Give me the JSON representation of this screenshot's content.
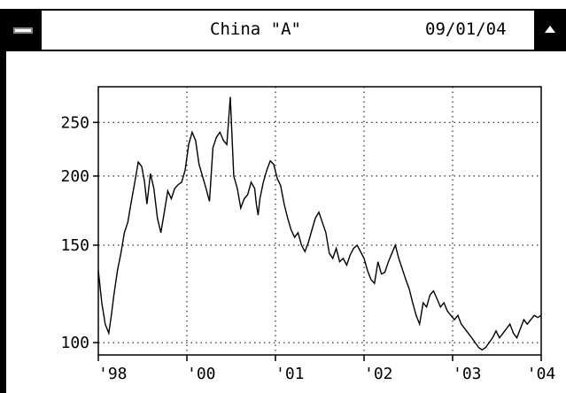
{
  "window": {
    "title": "China \"A\"",
    "date": "09/01/04",
    "menu_icon": "window-menu-icon",
    "scroll_icon": "scroll-up-icon"
  },
  "chart_data": {
    "type": "line",
    "title": "China \"A\"",
    "xlabel": "",
    "ylabel": "",
    "x_ticks": [
      "'98",
      "'00",
      "'01",
      "'02",
      "'03",
      "'04"
    ],
    "y_ticks": [
      100,
      150,
      200,
      250
    ],
    "ylim": [
      95,
      290
    ],
    "xlim": [
      1998.9,
      2004.0
    ],
    "y_scale": "log",
    "grid": "dotted",
    "series": [
      {
        "color": "#000000",
        "x": [
          1998.9,
          1998.94,
          1998.98,
          1999.02,
          1999.05,
          1999.08,
          1999.12,
          1999.16,
          1999.2,
          1999.24,
          1999.28,
          1999.32,
          1999.36,
          1999.4,
          1999.43,
          1999.46,
          1999.5,
          1999.54,
          1999.58,
          1999.62,
          1999.66,
          1999.7,
          1999.74,
          1999.78,
          1999.82,
          1999.86,
          1999.9,
          1999.94,
          1999.98,
          2000.02,
          2000.06,
          2000.1,
          2000.14,
          2000.18,
          2000.22,
          2000.26,
          2000.3,
          2000.34,
          2000.38,
          2000.42,
          2000.46,
          2000.5,
          2000.54,
          2000.58,
          2000.62,
          2000.66,
          2000.7,
          2000.72,
          2000.74,
          2000.76,
          2000.8,
          2000.84,
          2000.88,
          2000.92,
          2000.96,
          2001.0,
          2001.04,
          2001.08,
          2001.12,
          2001.16,
          2001.2,
          2001.24,
          2001.28,
          2001.32,
          2001.36,
          2001.4,
          2001.44,
          2001.48,
          2001.52,
          2001.56,
          2001.6,
          2001.64,
          2001.68,
          2001.72,
          2001.76,
          2001.8,
          2001.84,
          2001.88,
          2001.92,
          2001.96,
          2002.0,
          2002.04,
          2002.08,
          2002.12,
          2002.16,
          2002.2,
          2002.24,
          2002.28,
          2002.32,
          2002.36,
          2002.4,
          2002.44,
          2002.48,
          2002.52,
          2002.56,
          2002.6,
          2002.64,
          2002.68,
          2002.72,
          2002.76,
          2002.8,
          2002.84,
          2002.88,
          2002.92,
          2002.96,
          2003.0,
          2003.04,
          2003.08,
          2003.12,
          2003.16,
          2003.2,
          2003.24,
          2003.28,
          2003.32,
          2003.36,
          2003.4,
          2003.44,
          2003.48,
          2003.52,
          2003.56,
          2003.6,
          2003.64,
          2003.68,
          2003.72,
          2003.76,
          2003.8,
          2003.84,
          2003.88,
          2003.92,
          2003.96,
          2004.0
        ],
        "values": [
          135,
          118,
          108,
          104,
          112,
          122,
          135,
          145,
          158,
          165,
          180,
          195,
          212,
          208,
          196,
          178,
          202,
          190,
          168,
          158,
          172,
          188,
          182,
          190,
          193,
          195,
          205,
          228,
          240,
          232,
          210,
          200,
          190,
          180,
          225,
          235,
          240,
          232,
          228,
          278,
          200,
          190,
          175,
          182,
          185,
          195,
          190,
          178,
          170,
          182,
          195,
          205,
          213,
          210,
          198,
          192,
          178,
          168,
          160,
          155,
          158,
          150,
          146,
          152,
          160,
          168,
          172,
          165,
          158,
          145,
          142,
          148,
          140,
          142,
          138,
          144,
          148,
          150,
          146,
          142,
          135,
          130,
          128,
          140,
          133,
          134,
          140,
          145,
          150,
          142,
          136,
          130,
          125,
          118,
          112,
          108,
          118,
          116,
          122,
          124,
          120,
          116,
          118,
          114,
          112,
          110,
          112,
          108,
          106,
          104,
          102,
          100,
          98,
          97,
          98,
          100,
          102,
          105,
          102,
          104,
          106,
          108,
          104,
          102,
          106,
          110,
          108,
          110,
          112,
          111,
          112
        ]
      }
    ]
  }
}
